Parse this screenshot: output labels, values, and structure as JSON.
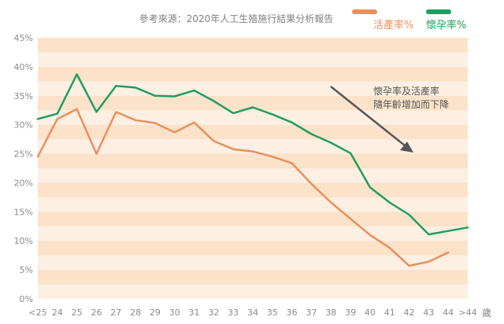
{
  "chart_data": {
    "type": "line",
    "title": "參考來源：2020年人工生殖施行結果分析報告",
    "x_unit": "歲",
    "categories": [
      "<25",
      "24",
      "25",
      "26",
      "27",
      "28",
      "29",
      "30",
      "31",
      "32",
      "33",
      "34",
      "35",
      "36",
      "37",
      "38",
      "39",
      "40",
      "41",
      "42",
      "43",
      "44",
      ">44"
    ],
    "yticks": [
      "0%",
      "5%",
      "10%",
      "15%",
      "20%",
      "25%",
      "30%",
      "35%",
      "40%",
      "45%"
    ],
    "ylim": [
      0,
      45
    ],
    "grid": "horizontal bands",
    "legend_position": "top-right",
    "series": [
      {
        "name": "活產率%",
        "color": "#e8905c",
        "values": [
          24.5,
          31.0,
          32.7,
          25.0,
          32.2,
          30.8,
          30.3,
          28.7,
          30.4,
          27.2,
          25.8,
          25.4,
          24.5,
          23.4,
          19.8,
          16.6,
          13.8,
          11.0,
          8.8,
          5.7,
          6.4,
          8.0,
          null
        ]
      },
      {
        "name": "懷孕率%",
        "color": "#1f9d60",
        "values": [
          31.0,
          31.9,
          38.7,
          32.2,
          36.7,
          36.4,
          35.0,
          34.9,
          35.9,
          34.1,
          32.0,
          33.0,
          31.8,
          30.4,
          28.4,
          26.9,
          25.1,
          19.2,
          16.6,
          14.5,
          11.1,
          11.7,
          12.3
        ]
      }
    ],
    "annotation": {
      "lines": [
        "懷孕率及活產率",
        "隨年齡增加而下降"
      ],
      "arrow_color": "#555555"
    }
  }
}
